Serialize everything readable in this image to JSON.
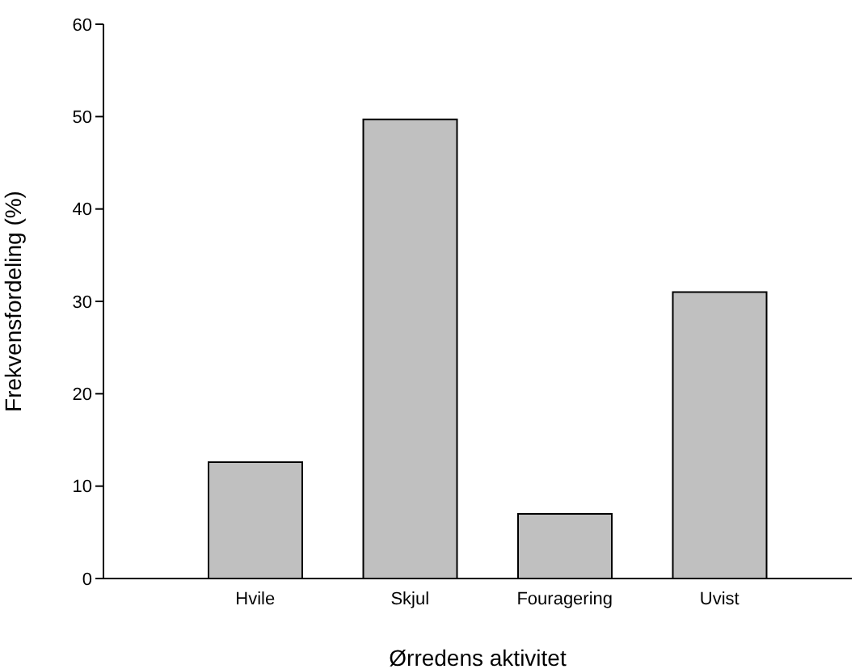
{
  "chart_data": {
    "type": "bar",
    "categories": [
      "Hvile",
      "Skjul",
      "Fouragering",
      "Uvist"
    ],
    "values": [
      12.6,
      49.7,
      7.0,
      31.0
    ],
    "color": "#c0c0c0",
    "xlabel": "Ørredens aktivitet",
    "ylabel": "Frekvensfordeling (%)",
    "ylim": [
      0,
      60
    ],
    "yticks": [
      0,
      10,
      20,
      30,
      40,
      50,
      60
    ],
    "grid": false,
    "legend": false
  }
}
